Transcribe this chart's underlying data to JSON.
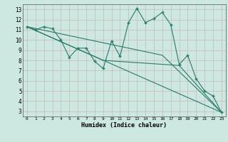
{
  "xlabel": "Humidex (Indice chaleur)",
  "bg_color": "#cce8e0",
  "plot_bg_color": "#cce8e0",
  "grid_color": "#c8b8b8",
  "line_color": "#2a7a6a",
  "xlim": [
    -0.5,
    23.5
  ],
  "ylim": [
    2.5,
    13.5
  ],
  "yticks": [
    3,
    4,
    5,
    6,
    7,
    8,
    9,
    10,
    11,
    12,
    13
  ],
  "xticks": [
    0,
    1,
    2,
    3,
    4,
    5,
    6,
    7,
    8,
    9,
    10,
    11,
    12,
    13,
    14,
    15,
    16,
    17,
    18,
    19,
    20,
    21,
    22,
    23
  ],
  "series": [
    [
      0,
      11.3
    ],
    [
      1,
      11.0
    ],
    [
      2,
      11.3
    ],
    [
      3,
      11.1
    ],
    [
      4,
      10.0
    ],
    [
      5,
      8.3
    ],
    [
      6,
      9.2
    ],
    [
      7,
      9.2
    ],
    [
      8,
      7.9
    ],
    [
      9,
      7.2
    ],
    [
      10,
      9.9
    ],
    [
      11,
      8.4
    ],
    [
      12,
      11.7
    ],
    [
      13,
      13.1
    ],
    [
      14,
      11.7
    ],
    [
      15,
      12.1
    ],
    [
      16,
      12.7
    ],
    [
      17,
      11.5
    ],
    [
      18,
      7.6
    ],
    [
      19,
      8.5
    ],
    [
      20,
      6.2
    ],
    [
      21,
      5.0
    ],
    [
      22,
      4.5
    ],
    [
      23,
      2.9
    ]
  ],
  "line2": [
    [
      0,
      11.3
    ],
    [
      23,
      2.9
    ]
  ],
  "line3": [
    [
      0,
      11.3
    ],
    [
      16,
      8.5
    ],
    [
      23,
      2.9
    ]
  ],
  "line4": [
    [
      0,
      11.3
    ],
    [
      9,
      8.0
    ],
    [
      18,
      7.5
    ],
    [
      23,
      2.9
    ]
  ]
}
